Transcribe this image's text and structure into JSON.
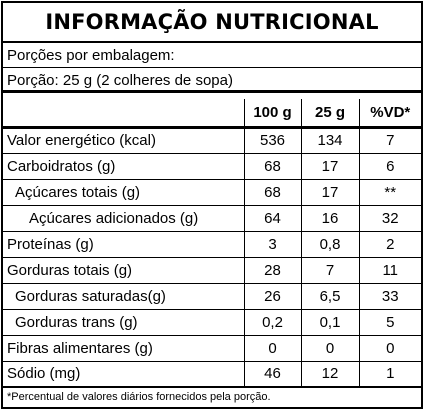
{
  "title": "INFORMAÇÃO NUTRICIONAL",
  "servings_per_package": "Porções por embalagem:",
  "serving_size": "Porção: 25 g (2 colheres de sopa)",
  "columns": [
    "",
    "100 g",
    "25 g",
    "%VD*"
  ],
  "rows": [
    {
      "label": "Valor energético (kcal)",
      "level": 0,
      "per_100g": "536",
      "per_serving": "134",
      "dv": "7"
    },
    {
      "label": "Carboidratos (g)",
      "level": 0,
      "per_100g": "68",
      "per_serving": "17",
      "dv": "6"
    },
    {
      "label": "Açúcares totais (g)",
      "level": 1,
      "per_100g": "68",
      "per_serving": "17",
      "dv": "**"
    },
    {
      "label": "Açúcares adicionados (g)",
      "level": 2,
      "per_100g": "64",
      "per_serving": "16",
      "dv": "32"
    },
    {
      "label": "Proteínas (g)",
      "level": 0,
      "per_100g": "3",
      "per_serving": "0,8",
      "dv": "2"
    },
    {
      "label": "Gorduras totais (g)",
      "level": 0,
      "per_100g": "28",
      "per_serving": "7",
      "dv": "11"
    },
    {
      "label": "Gorduras saturadas(g)",
      "level": 1,
      "per_100g": "26",
      "per_serving": "6,5",
      "dv": "33"
    },
    {
      "label": "Gorduras trans (g)",
      "level": 1,
      "per_100g": "0,2",
      "per_serving": "0,1",
      "dv": "5"
    },
    {
      "label": "Fibras alimentares (g)",
      "level": 0,
      "per_100g": "0",
      "per_serving": "0",
      "dv": "0"
    },
    {
      "label": "Sódio (mg)",
      "level": 0,
      "per_100g": "46",
      "per_serving": "12",
      "dv": "1"
    }
  ],
  "footnote": "*Percentual de valores diários fornecidos pela porção."
}
